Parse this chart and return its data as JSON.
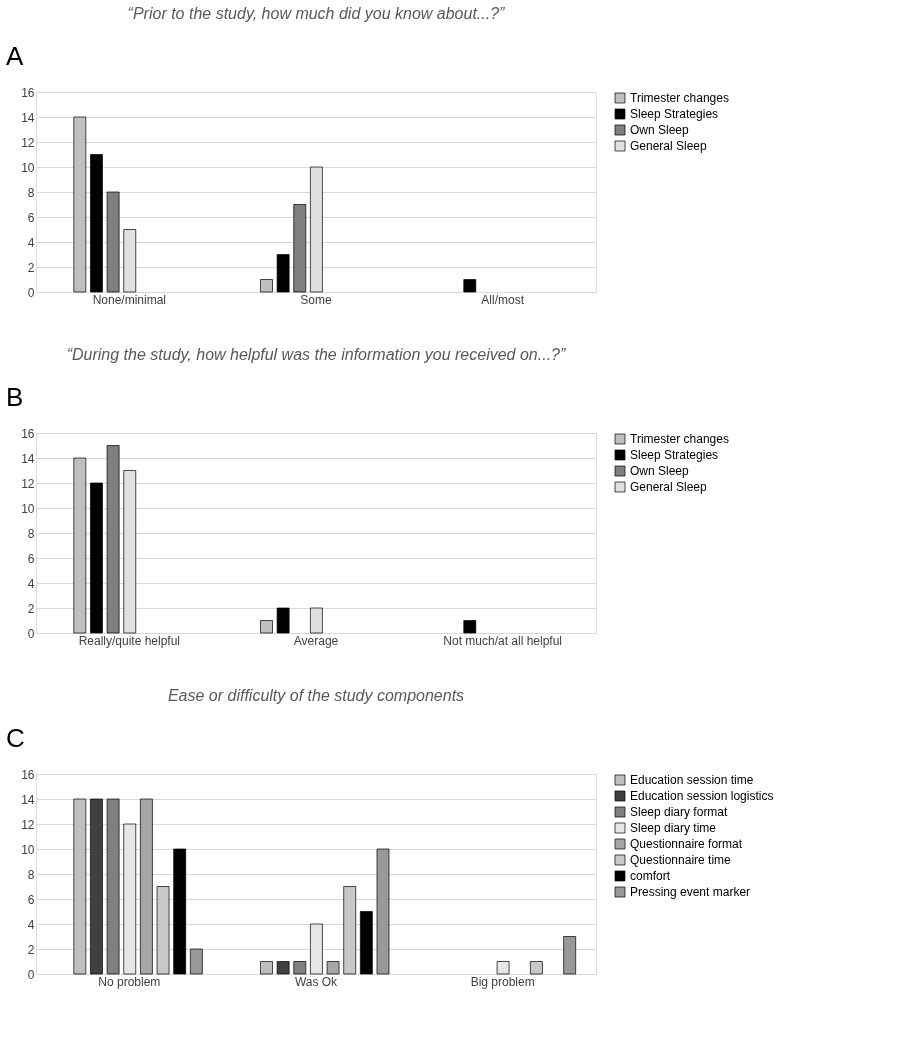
{
  "chart_data": [
    {
      "type": "bar",
      "title": "“Prior to the study, how much did you know about...?”",
      "annotations": [
        "A"
      ],
      "categories": [
        "None/minimal",
        "Some",
        "All/most"
      ],
      "ylim": [
        0,
        16
      ],
      "yticks": [
        0,
        2,
        4,
        6,
        8,
        10,
        12,
        14,
        16
      ],
      "grid": "y",
      "legend": "right",
      "series": [
        {
          "name": "Trimester changes",
          "color": "#bfbfbf",
          "values": [
            14,
            1,
            0
          ]
        },
        {
          "name": "Sleep Strategies",
          "color": "#000000",
          "values": [
            11,
            3,
            1
          ]
        },
        {
          "name": "Own Sleep",
          "color": "#7f7f7f",
          "values": [
            8,
            7,
            0
          ]
        },
        {
          "name": "General Sleep",
          "color": "#e0e0e0",
          "values": [
            5,
            10,
            0
          ]
        }
      ]
    },
    {
      "type": "bar",
      "title": "“During the study, how helpful was the information you received on...?”",
      "annotations": [
        "B"
      ],
      "categories": [
        "Really/quite helpful",
        "Average",
        "Not much/at all helpful"
      ],
      "ylim": [
        0,
        16
      ],
      "yticks": [
        0,
        2,
        4,
        6,
        8,
        10,
        12,
        14,
        16
      ],
      "grid": "y",
      "legend": "right",
      "series": [
        {
          "name": "Trimester changes",
          "color": "#bfbfbf",
          "values": [
            14,
            1,
            0
          ]
        },
        {
          "name": "Sleep Strategies",
          "color": "#000000",
          "values": [
            12,
            2,
            1
          ]
        },
        {
          "name": "Own Sleep",
          "color": "#7f7f7f",
          "values": [
            15,
            0,
            0
          ]
        },
        {
          "name": "General Sleep",
          "color": "#e0e0e0",
          "values": [
            13,
            2,
            0
          ]
        }
      ]
    },
    {
      "type": "bar",
      "title": "Ease or difficulty of the study components",
      "annotations": [
        "C"
      ],
      "categories": [
        "No problem",
        "Was Ok",
        "Big problem"
      ],
      "ylim": [
        0,
        16
      ],
      "yticks": [
        0,
        2,
        4,
        6,
        8,
        10,
        12,
        14,
        16
      ],
      "grid": "y",
      "legend": "right",
      "series": [
        {
          "name": "Education session time",
          "color": "#bfbfbf",
          "values": [
            14,
            1,
            0
          ]
        },
        {
          "name": "Education session logistics",
          "color": "#404040",
          "values": [
            14,
            1,
            0
          ]
        },
        {
          "name": "Sleep diary format",
          "color": "#808080",
          "values": [
            14,
            1,
            0
          ]
        },
        {
          "name": "Sleep diary time",
          "color": "#e6e6e6",
          "values": [
            12,
            4,
            1
          ]
        },
        {
          "name": "Questionnaire format",
          "color": "#a6a6a6",
          "values": [
            14,
            1,
            0
          ]
        },
        {
          "name": "Questionnaire time",
          "color": "#c8c8c8",
          "values": [
            7,
            7,
            1
          ]
        },
        {
          "name": "comfort",
          "color": "#000000",
          "values": [
            10,
            5,
            0
          ]
        },
        {
          "name": "Pressing event marker",
          "color": "#999999",
          "values": [
            2,
            10,
            3
          ]
        }
      ]
    }
  ]
}
